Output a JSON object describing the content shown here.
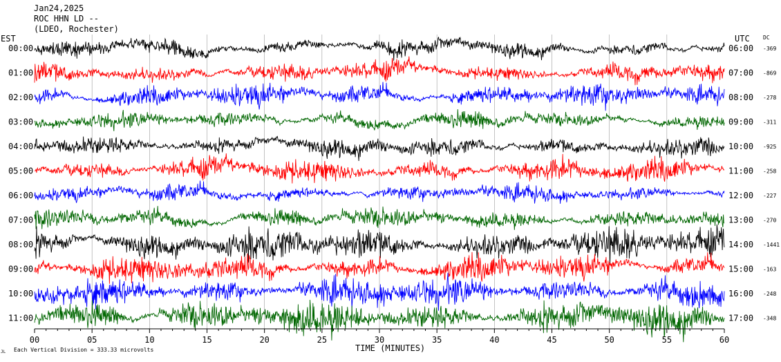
{
  "chart_data": {
    "type": "line",
    "header": {
      "date": "Jan24,2025",
      "station": "ROC HHN LD --",
      "network": "(LDEO, Rochester)"
    },
    "left_axis_title": "EST",
    "right_axis_title": "UTC",
    "dc_title": "DC",
    "xlabel": "TIME (MINUTES)",
    "x_ticks": [
      0,
      5,
      10,
      15,
      20,
      25,
      30,
      35,
      40,
      45,
      50,
      55,
      60
    ],
    "x_tick_labels": [
      "00",
      "05",
      "10",
      "15",
      "20",
      "25",
      "30",
      "35",
      "40",
      "45",
      "50",
      "55",
      "60"
    ],
    "xlim": [
      0,
      60
    ],
    "scale_note": "Each Vertical Division = 333.33 microvolts",
    "corner_mark": "JL",
    "colors": [
      "#000000",
      "#ff0000",
      "#0000ff",
      "#006600"
    ],
    "rows": [
      {
        "est": "00:00",
        "utc": "06:00",
        "dc": "-369"
      },
      {
        "est": "01:00",
        "utc": "07:00",
        "dc": "-869"
      },
      {
        "est": "02:00",
        "utc": "08:00",
        "dc": "-278"
      },
      {
        "est": "03:00",
        "utc": "09:00",
        "dc": "-311"
      },
      {
        "est": "04:00",
        "utc": "10:00",
        "dc": "-925"
      },
      {
        "est": "05:00",
        "utc": "11:00",
        "dc": "-258"
      },
      {
        "est": "06:00",
        "utc": "12:00",
        "dc": "-227"
      },
      {
        "est": "07:00",
        "utc": "13:00",
        "dc": "-270"
      },
      {
        "est": "08:00",
        "utc": "14:00",
        "dc": "-1441"
      },
      {
        "est": "09:00",
        "utc": "15:00",
        "dc": "-163"
      },
      {
        "est": "10:00",
        "utc": "16:00",
        "dc": "-248"
      },
      {
        "est": "11:00",
        "utc": "17:00",
        "dc": "-348"
      }
    ]
  }
}
